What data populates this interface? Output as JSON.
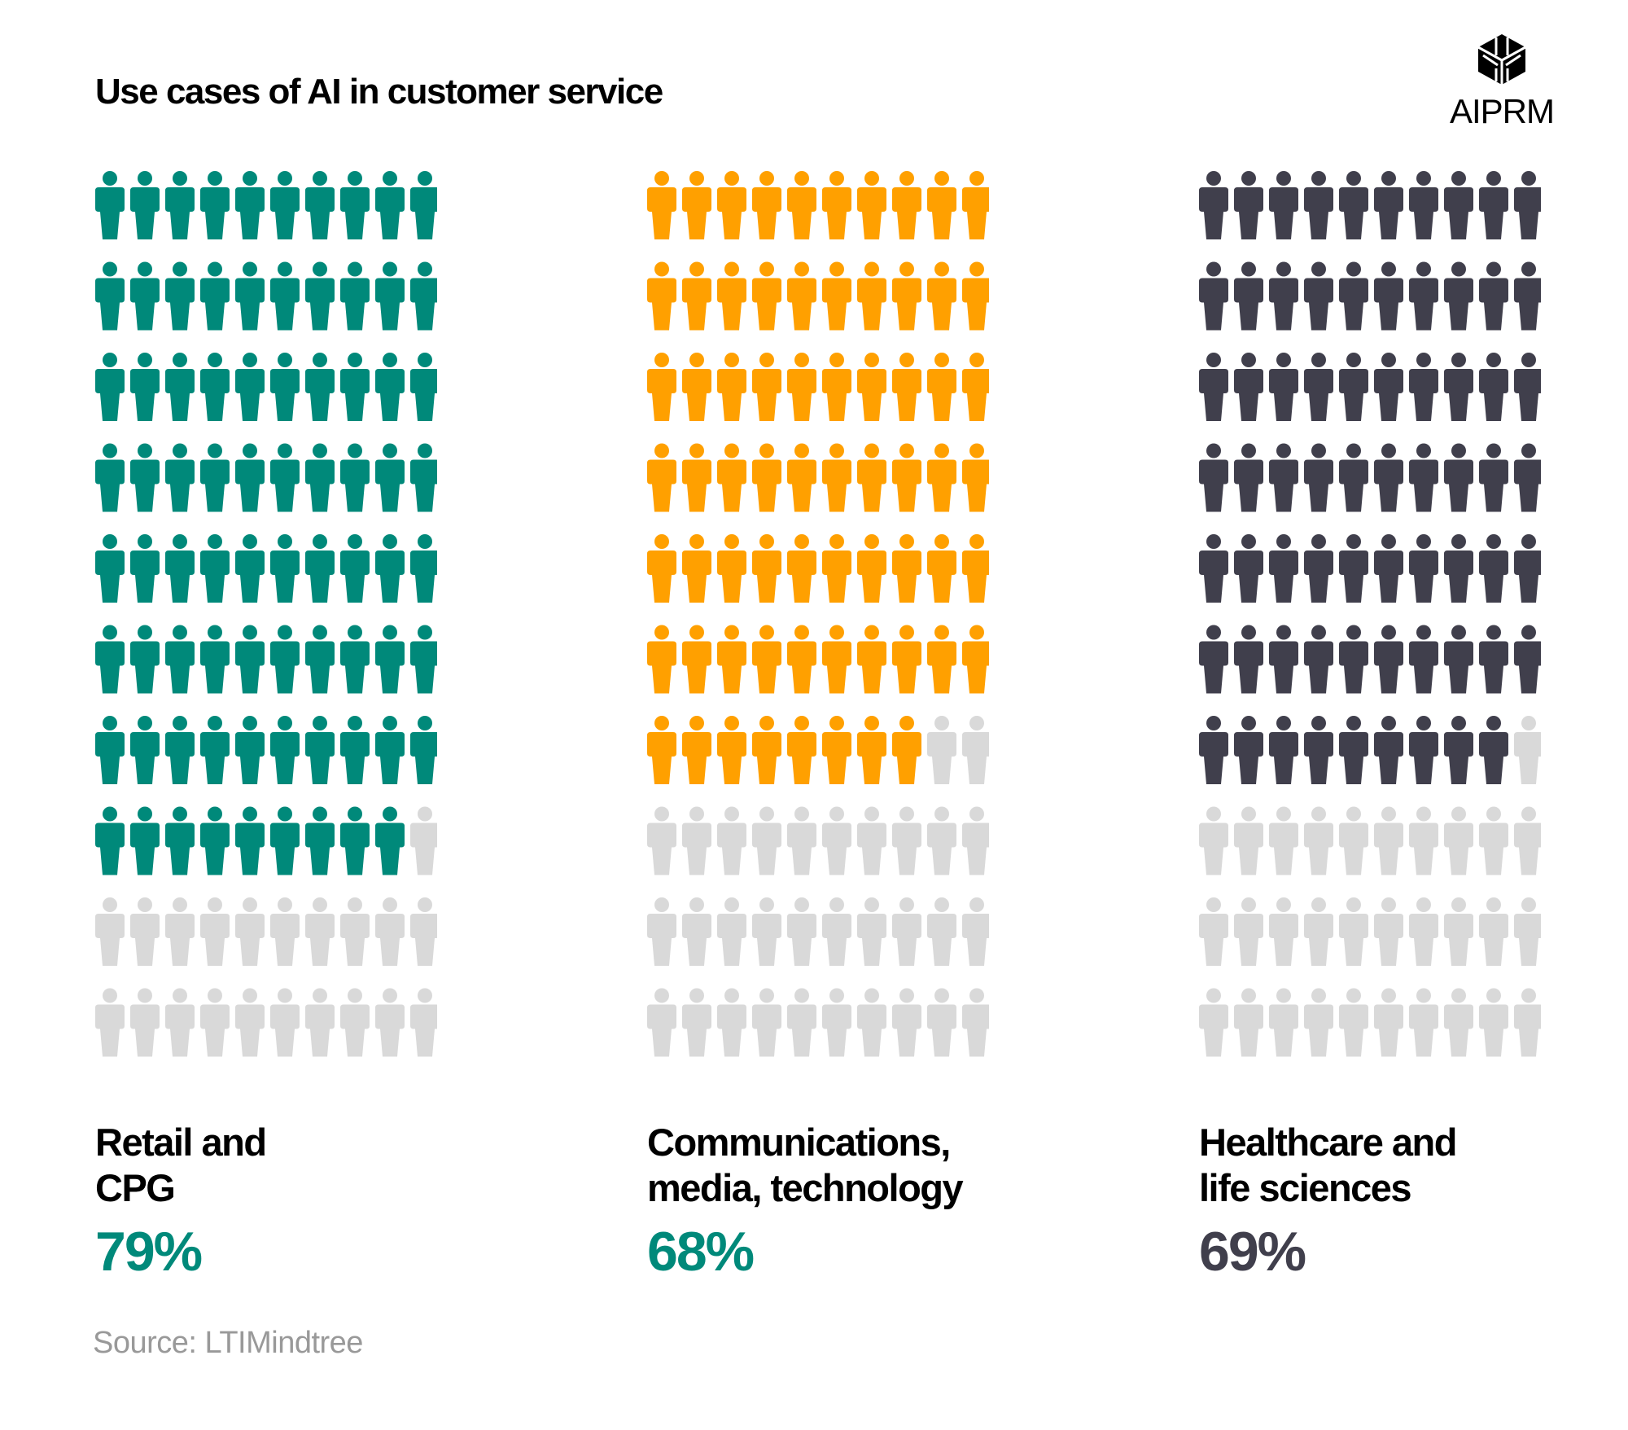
{
  "title": "Use cases of AI in customer service",
  "logo_text": "AIPRM",
  "source": "Source: LTIMindtree",
  "chart_data": {
    "type": "pictogram",
    "title": "Use cases of AI in customer service",
    "units_per_chart": 100,
    "empty_color": "#d9d9d9",
    "series": [
      {
        "name": "Retail and\nCPG",
        "value": 79,
        "label": "79%",
        "color": "#00897a",
        "label_color": "#00897a"
      },
      {
        "name": "Communications,\nmedia, technology",
        "value": 68,
        "label": "68%",
        "color": "#ffa000",
        "label_color": "#00897a"
      },
      {
        "name": "Healthcare and\nlife sciences",
        "value": 69,
        "label": "69%",
        "color": "#403f4c",
        "label_color": "#403f4c"
      }
    ]
  }
}
